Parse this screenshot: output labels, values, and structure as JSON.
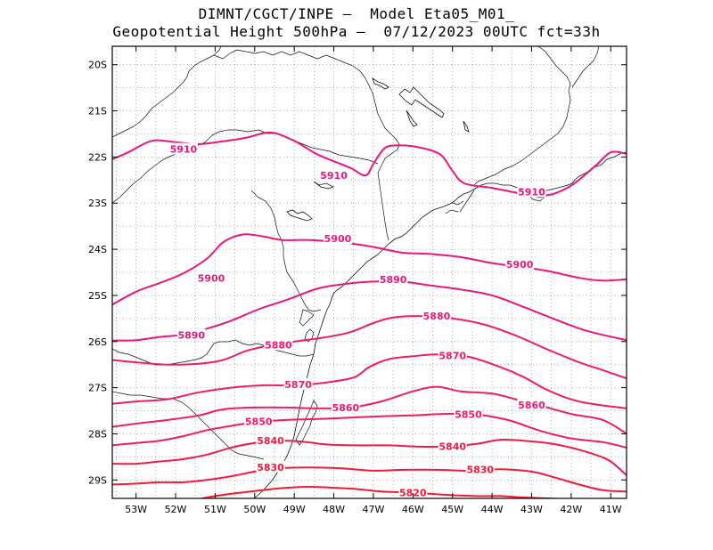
{
  "header": {
    "line1": "DIMNT/CGCT/INPE —  Model Eta05_M01_",
    "line2": "Geopotential Height 500hPa —  07/12/2023 00UTC fct=33h"
  },
  "chart_data": {
    "type": "contour-map",
    "title": "Geopotential Height 500hPa",
    "source": "DIMNT/CGCT/INPE",
    "model": "Eta05_M01_",
    "init": "07/12/2023 00UTC",
    "forecast_hour": "fct=33h",
    "xlim": [
      -53.6,
      -40.6
    ],
    "ylim": [
      -29.4,
      -19.6
    ],
    "x_ticks": [
      {
        "value": -53,
        "label": "53W"
      },
      {
        "value": -52,
        "label": "52W"
      },
      {
        "value": -51,
        "label": "51W"
      },
      {
        "value": -50,
        "label": "50W"
      },
      {
        "value": -49,
        "label": "49W"
      },
      {
        "value": -48,
        "label": "48W"
      },
      {
        "value": -47,
        "label": "47W"
      },
      {
        "value": -46,
        "label": "46W"
      },
      {
        "value": -45,
        "label": "45W"
      },
      {
        "value": -44,
        "label": "44W"
      },
      {
        "value": -43,
        "label": "43W"
      },
      {
        "value": -42,
        "label": "42W"
      },
      {
        "value": -41,
        "label": "41W"
      }
    ],
    "y_ticks": [
      {
        "value": -20,
        "label": "20S"
      },
      {
        "value": -21,
        "label": "21S"
      },
      {
        "value": -22,
        "label": "22S"
      },
      {
        "value": -23,
        "label": "23S"
      },
      {
        "value": -24,
        "label": "24S"
      },
      {
        "value": -25,
        "label": "25S"
      },
      {
        "value": -26,
        "label": "26S"
      },
      {
        "value": -27,
        "label": "27S"
      },
      {
        "value": -28,
        "label": "28S"
      },
      {
        "value": -29,
        "label": "29S"
      }
    ],
    "grid": "dotted, 0.5 degree",
    "contour_interval": 10,
    "contours": [
      {
        "level": 5910,
        "color": "#e8177f",
        "labels": [
          {
            "text": "5910",
            "lon": -51.8,
            "lat": -21.83
          },
          {
            "text": "5910",
            "lon": -48.0,
            "lat": -22.4
          },
          {
            "text": "5910",
            "lon": -43.0,
            "lat": -22.75
          }
        ],
        "points": [
          [
            -53.6,
            -22.05
          ],
          [
            -53.2,
            -21.9
          ],
          [
            -52.6,
            -21.65
          ],
          [
            -52.0,
            -21.68
          ],
          [
            -51.4,
            -21.72
          ],
          [
            -50.8,
            -21.66
          ],
          [
            -50.2,
            -21.58
          ],
          [
            -49.6,
            -21.47
          ],
          [
            -49.0,
            -21.65
          ],
          [
            -48.4,
            -21.95
          ],
          [
            -47.6,
            -22.23
          ],
          [
            -47.2,
            -22.4
          ],
          [
            -47.0,
            -22.15
          ],
          [
            -46.7,
            -21.8
          ],
          [
            -46.3,
            -21.75
          ],
          [
            -45.8,
            -21.8
          ],
          [
            -45.3,
            -21.95
          ],
          [
            -45.0,
            -22.3
          ],
          [
            -44.7,
            -22.57
          ],
          [
            -44.0,
            -22.67
          ],
          [
            -43.2,
            -22.8
          ],
          [
            -42.6,
            -22.83
          ],
          [
            -42.0,
            -22.62
          ],
          [
            -41.4,
            -22.2
          ],
          [
            -41.0,
            -21.9
          ],
          [
            -40.6,
            -21.93
          ]
        ]
      },
      {
        "level": 5900,
        "color": "#e8177f",
        "labels": [
          {
            "text": "5900",
            "lon": -51.1,
            "lat": -24.63
          },
          {
            "text": "5900",
            "lon": -47.9,
            "lat": -23.77
          },
          {
            "text": "5900",
            "lon": -43.3,
            "lat": -24.33
          }
        ],
        "points": [
          [
            -53.6,
            -25.2
          ],
          [
            -53.0,
            -24.92
          ],
          [
            -52.4,
            -24.73
          ],
          [
            -51.8,
            -24.52
          ],
          [
            -51.2,
            -24.2
          ],
          [
            -50.8,
            -23.85
          ],
          [
            -50.3,
            -23.68
          ],
          [
            -49.8,
            -23.72
          ],
          [
            -49.3,
            -23.8
          ],
          [
            -48.6,
            -23.8
          ],
          [
            -47.8,
            -23.85
          ],
          [
            -47.0,
            -23.95
          ],
          [
            -46.3,
            -24.07
          ],
          [
            -45.6,
            -24.1
          ],
          [
            -44.8,
            -24.17
          ],
          [
            -44.0,
            -24.3
          ],
          [
            -43.3,
            -24.38
          ],
          [
            -42.6,
            -24.47
          ],
          [
            -41.8,
            -24.62
          ],
          [
            -41.2,
            -24.68
          ],
          [
            -40.6,
            -24.65
          ]
        ]
      },
      {
        "level": 5890,
        "color": "#e8177f",
        "labels": [
          {
            "text": "5890",
            "lon": -51.6,
            "lat": -25.86
          },
          {
            "text": "5890",
            "lon": -46.5,
            "lat": -24.65
          }
        ],
        "points": [
          [
            -53.6,
            -25.98
          ],
          [
            -53.0,
            -25.97
          ],
          [
            -52.4,
            -25.9
          ],
          [
            -51.8,
            -25.85
          ],
          [
            -51.2,
            -25.72
          ],
          [
            -50.6,
            -25.55
          ],
          [
            -49.9,
            -25.3
          ],
          [
            -49.2,
            -25.1
          ],
          [
            -48.4,
            -24.85
          ],
          [
            -47.7,
            -24.75
          ],
          [
            -47.0,
            -24.7
          ],
          [
            -46.3,
            -24.7
          ],
          [
            -45.6,
            -24.78
          ],
          [
            -44.8,
            -24.87
          ],
          [
            -44.0,
            -25.0
          ],
          [
            -43.2,
            -25.25
          ],
          [
            -42.4,
            -25.52
          ],
          [
            -41.6,
            -25.77
          ],
          [
            -40.6,
            -25.97
          ]
        ]
      },
      {
        "level": 5880,
        "color": "#f01a6f",
        "labels": [
          {
            "text": "5880",
            "lon": -49.4,
            "lat": -26.07
          },
          {
            "text": "5880",
            "lon": -45.4,
            "lat": -25.45
          }
        ],
        "points": [
          [
            -53.6,
            -26.4
          ],
          [
            -53.0,
            -26.45
          ],
          [
            -52.2,
            -26.5
          ],
          [
            -51.4,
            -26.48
          ],
          [
            -50.8,
            -26.4
          ],
          [
            -50.2,
            -26.2
          ],
          [
            -49.6,
            -26.08
          ],
          [
            -49.0,
            -26.0
          ],
          [
            -48.3,
            -25.92
          ],
          [
            -47.6,
            -25.8
          ],
          [
            -47.0,
            -25.6
          ],
          [
            -46.5,
            -25.48
          ],
          [
            -45.8,
            -25.45
          ],
          [
            -45.0,
            -25.5
          ],
          [
            -44.2,
            -25.63
          ],
          [
            -43.4,
            -25.87
          ],
          [
            -42.6,
            -26.17
          ],
          [
            -41.8,
            -26.45
          ],
          [
            -41.2,
            -26.62
          ],
          [
            -40.6,
            -26.8
          ]
        ]
      },
      {
        "level": 5870,
        "color": "#f01a6f",
        "labels": [
          {
            "text": "5870",
            "lon": -48.9,
            "lat": -26.93
          },
          {
            "text": "5870",
            "lon": -45.0,
            "lat": -26.3
          }
        ],
        "points": [
          [
            -53.6,
            -27.35
          ],
          [
            -53.0,
            -27.3
          ],
          [
            -52.2,
            -27.25
          ],
          [
            -51.4,
            -27.1
          ],
          [
            -50.6,
            -27.0
          ],
          [
            -49.8,
            -26.95
          ],
          [
            -49.0,
            -26.95
          ],
          [
            -48.3,
            -26.9
          ],
          [
            -47.5,
            -26.78
          ],
          [
            -47.1,
            -26.55
          ],
          [
            -46.6,
            -26.38
          ],
          [
            -46.0,
            -26.32
          ],
          [
            -45.4,
            -26.28
          ],
          [
            -44.6,
            -26.33
          ],
          [
            -43.8,
            -26.55
          ],
          [
            -43.2,
            -26.77
          ],
          [
            -42.6,
            -27.05
          ],
          [
            -41.8,
            -27.3
          ],
          [
            -40.6,
            -27.45
          ]
        ]
      },
      {
        "level": 5860,
        "color": "#f01a6f",
        "labels": [
          {
            "text": "5860",
            "lon": -47.7,
            "lat": -27.43
          },
          {
            "text": "5860",
            "lon": -43.0,
            "lat": -27.37
          }
        ],
        "points": [
          [
            -53.6,
            -27.85
          ],
          [
            -53.0,
            -27.78
          ],
          [
            -52.2,
            -27.7
          ],
          [
            -51.4,
            -27.6
          ],
          [
            -50.8,
            -27.47
          ],
          [
            -50.0,
            -27.43
          ],
          [
            -49.2,
            -27.43
          ],
          [
            -48.4,
            -27.45
          ],
          [
            -47.6,
            -27.43
          ],
          [
            -46.8,
            -27.3
          ],
          [
            -46.0,
            -27.08
          ],
          [
            -45.4,
            -26.98
          ],
          [
            -44.8,
            -27.08
          ],
          [
            -44.0,
            -27.13
          ],
          [
            -43.4,
            -27.25
          ],
          [
            -42.8,
            -27.38
          ],
          [
            -42.0,
            -27.57
          ],
          [
            -41.2,
            -27.7
          ],
          [
            -40.6,
            -28.0
          ]
        ]
      },
      {
        "level": 5850,
        "color": "#f01a5e",
        "labels": [
          {
            "text": "5850",
            "lon": -49.9,
            "lat": -27.73
          },
          {
            "text": "5850",
            "lon": -44.6,
            "lat": -27.58
          }
        ],
        "points": [
          [
            -53.6,
            -28.25
          ],
          [
            -53.0,
            -28.2
          ],
          [
            -52.4,
            -28.15
          ],
          [
            -51.8,
            -28.05
          ],
          [
            -51.2,
            -27.92
          ],
          [
            -50.6,
            -27.83
          ],
          [
            -50.0,
            -27.75
          ],
          [
            -49.2,
            -27.7
          ],
          [
            -48.4,
            -27.68
          ],
          [
            -47.6,
            -27.65
          ],
          [
            -46.8,
            -27.62
          ],
          [
            -46.0,
            -27.6
          ],
          [
            -45.2,
            -27.57
          ],
          [
            -44.4,
            -27.58
          ],
          [
            -43.6,
            -27.7
          ],
          [
            -42.8,
            -27.93
          ],
          [
            -42.0,
            -28.1
          ],
          [
            -41.2,
            -28.18
          ],
          [
            -40.6,
            -28.3
          ]
        ]
      },
      {
        "level": 5840,
        "color": "#f01a4a",
        "labels": [
          {
            "text": "5840",
            "lon": -49.6,
            "lat": -28.15
          },
          {
            "text": "5840",
            "lon": -45.0,
            "lat": -28.27
          }
        ],
        "points": [
          [
            -53.6,
            -28.65
          ],
          [
            -53.0,
            -28.65
          ],
          [
            -52.4,
            -28.6
          ],
          [
            -51.8,
            -28.55
          ],
          [
            -51.2,
            -28.45
          ],
          [
            -50.6,
            -28.3
          ],
          [
            -50.0,
            -28.2
          ],
          [
            -49.4,
            -28.15
          ],
          [
            -48.8,
            -28.17
          ],
          [
            -48.2,
            -28.23
          ],
          [
            -47.4,
            -28.25
          ],
          [
            -46.6,
            -28.25
          ],
          [
            -45.8,
            -28.28
          ],
          [
            -45.0,
            -28.27
          ],
          [
            -44.4,
            -28.22
          ],
          [
            -43.8,
            -28.13
          ],
          [
            -43.2,
            -28.15
          ],
          [
            -42.6,
            -28.2
          ],
          [
            -42.0,
            -28.3
          ],
          [
            -41.4,
            -28.45
          ],
          [
            -41.0,
            -28.6
          ],
          [
            -40.6,
            -28.9
          ]
        ]
      },
      {
        "level": 5830,
        "color": "#f01a3a",
        "labels": [
          {
            "text": "5830",
            "lon": -49.6,
            "lat": -28.72
          },
          {
            "text": "5830",
            "lon": -44.3,
            "lat": -28.77
          }
        ],
        "points": [
          [
            -53.6,
            -29.1
          ],
          [
            -53.0,
            -29.08
          ],
          [
            -52.4,
            -29.05
          ],
          [
            -51.8,
            -29.05
          ],
          [
            -51.2,
            -29.0
          ],
          [
            -50.6,
            -28.92
          ],
          [
            -50.0,
            -28.82
          ],
          [
            -49.4,
            -28.75
          ],
          [
            -48.6,
            -28.73
          ],
          [
            -47.8,
            -28.75
          ],
          [
            -47.0,
            -28.8
          ],
          [
            -46.2,
            -28.78
          ],
          [
            -45.4,
            -28.78
          ],
          [
            -44.6,
            -28.8
          ],
          [
            -43.8,
            -28.77
          ],
          [
            -43.0,
            -28.82
          ],
          [
            -42.4,
            -28.95
          ],
          [
            -41.8,
            -29.1
          ],
          [
            -41.2,
            -29.22
          ],
          [
            -40.6,
            -29.25
          ]
        ]
      },
      {
        "level": 5820,
        "color": "#f01a33",
        "labels": [
          {
            "text": "5820",
            "lon": -46.0,
            "lat": -29.27
          }
        ],
        "points": [
          [
            -51.6,
            -29.45
          ],
          [
            -51.0,
            -29.35
          ],
          [
            -50.4,
            -29.28
          ],
          [
            -49.8,
            -29.22
          ],
          [
            -49.2,
            -29.17
          ],
          [
            -48.6,
            -29.15
          ],
          [
            -48.0,
            -29.17
          ],
          [
            -47.4,
            -29.2
          ],
          [
            -46.8,
            -29.25
          ],
          [
            -46.2,
            -29.27
          ],
          [
            -45.6,
            -29.3
          ],
          [
            -45.0,
            -29.33
          ],
          [
            -44.4,
            -29.35
          ],
          [
            -43.8,
            -29.35
          ],
          [
            -43.2,
            -29.38
          ],
          [
            -42.6,
            -29.4
          ],
          [
            -42.0,
            -29.42
          ],
          [
            -41.4,
            -29.45
          ]
        ]
      }
    ]
  }
}
